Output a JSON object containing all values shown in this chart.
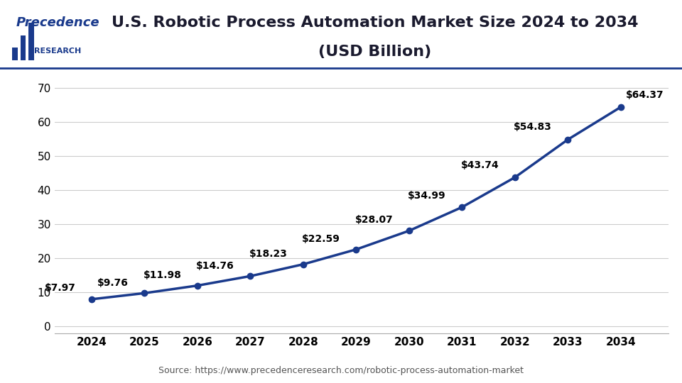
{
  "title_line1": "U.S. Robotic Process Automation Market Size 2024 to 2034",
  "title_line2": "(USD Billion)",
  "years": [
    2024,
    2025,
    2026,
    2027,
    2028,
    2029,
    2030,
    2031,
    2032,
    2033,
    2034
  ],
  "values": [
    7.97,
    9.76,
    11.98,
    14.76,
    18.23,
    22.59,
    28.07,
    34.99,
    43.74,
    54.83,
    64.37
  ],
  "labels": [
    "$7.97",
    "$9.76",
    "$11.98",
    "$14.76",
    "$18.23",
    "$22.59",
    "$28.07",
    "$34.99",
    "$43.74",
    "$54.83",
    "$64.37"
  ],
  "line_color": "#1a3a8c",
  "marker_color": "#1a3a8c",
  "yticks": [
    0,
    10,
    20,
    30,
    40,
    50,
    60,
    70
  ],
  "ylim": [
    -2,
    75
  ],
  "source_text": "Source: https://www.precedenceresearch.com/robotic-process-automation-market",
  "title_color": "#1a1a2e",
  "header_bg": "#ffffff",
  "plot_bg": "#ffffff",
  "grid_color": "#cccccc",
  "title_fontsize": 16,
  "label_fontsize": 10,
  "axis_fontsize": 11,
  "source_fontsize": 9,
  "line_width": 2.5,
  "marker_size": 6,
  "logo_color": "#1a3a8c",
  "header_border_color": "#1a3a8c",
  "label_offsets_x": [
    -0.3,
    -0.3,
    -0.3,
    -0.3,
    -0.3,
    -0.3,
    -0.3,
    -0.3,
    -0.3,
    -0.3,
    0.1
  ],
  "label_offsets_y": [
    1.8,
    1.5,
    1.5,
    1.5,
    1.5,
    1.5,
    1.8,
    1.8,
    2.0,
    2.2,
    2.0
  ],
  "label_ha": [
    "right",
    "right",
    "right",
    "right",
    "right",
    "right",
    "right",
    "right",
    "right",
    "right",
    "left"
  ]
}
